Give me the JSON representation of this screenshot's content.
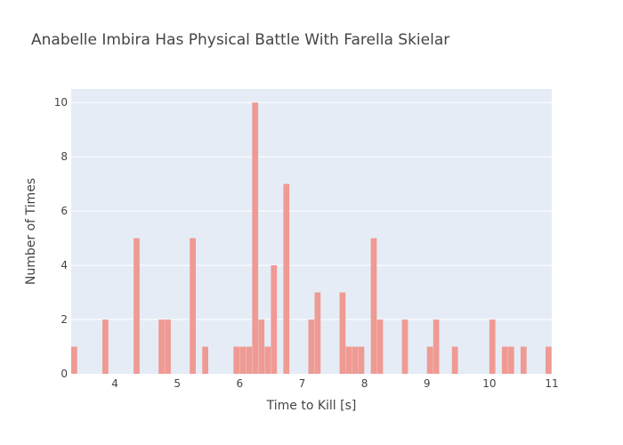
{
  "chart_data": {
    "type": "bar",
    "title": "Anabelle Imbira Has Physical Battle With Farella Skielar",
    "xlabel": "Time to Kill [s]",
    "ylabel": "Number of Times",
    "xlim": [
      3.3,
      11
    ],
    "ylim": [
      0,
      10.5
    ],
    "x_ticks": [
      4,
      5,
      6,
      7,
      8,
      9,
      10,
      11
    ],
    "y_ticks": [
      0,
      2,
      4,
      6,
      8,
      10
    ],
    "bin_width": 0.1,
    "grid": true,
    "colors": {
      "bar": "#EF9A93",
      "plot_bg": "#E5ECF6",
      "grid": "#FFFFFF"
    },
    "bins": [
      {
        "x": 3.35,
        "count": 1
      },
      {
        "x": 3.85,
        "count": 2
      },
      {
        "x": 4.35,
        "count": 5
      },
      {
        "x": 4.75,
        "count": 2
      },
      {
        "x": 4.85,
        "count": 2
      },
      {
        "x": 5.25,
        "count": 5
      },
      {
        "x": 5.45,
        "count": 1
      },
      {
        "x": 5.95,
        "count": 1
      },
      {
        "x": 6.05,
        "count": 1
      },
      {
        "x": 6.15,
        "count": 1
      },
      {
        "x": 6.25,
        "count": 10
      },
      {
        "x": 6.35,
        "count": 2
      },
      {
        "x": 6.45,
        "count": 1
      },
      {
        "x": 6.55,
        "count": 4
      },
      {
        "x": 6.75,
        "count": 7
      },
      {
        "x": 7.15,
        "count": 2
      },
      {
        "x": 7.25,
        "count": 3
      },
      {
        "x": 7.65,
        "count": 3
      },
      {
        "x": 7.75,
        "count": 1
      },
      {
        "x": 7.85,
        "count": 1
      },
      {
        "x": 7.95,
        "count": 1
      },
      {
        "x": 8.15,
        "count": 5
      },
      {
        "x": 8.25,
        "count": 2
      },
      {
        "x": 8.65,
        "count": 2
      },
      {
        "x": 9.05,
        "count": 1
      },
      {
        "x": 9.15,
        "count": 2
      },
      {
        "x": 9.45,
        "count": 1
      },
      {
        "x": 10.05,
        "count": 2
      },
      {
        "x": 10.25,
        "count": 1
      },
      {
        "x": 10.35,
        "count": 1
      },
      {
        "x": 10.55,
        "count": 1
      },
      {
        "x": 10.95,
        "count": 1
      }
    ]
  }
}
